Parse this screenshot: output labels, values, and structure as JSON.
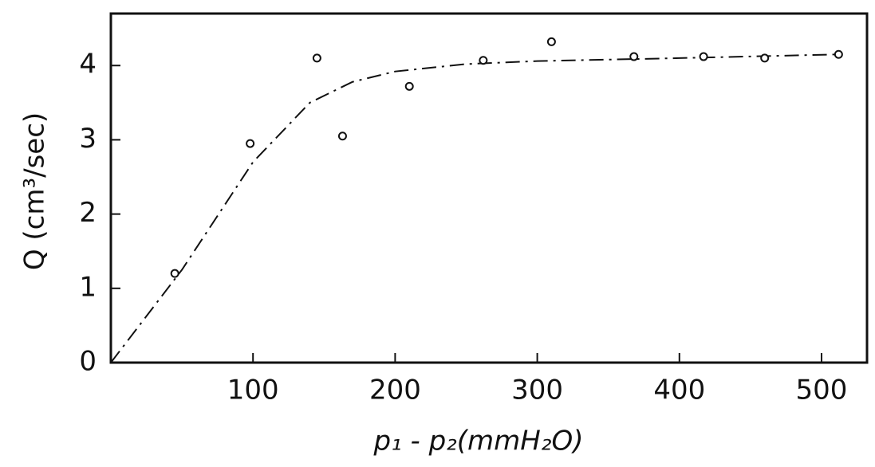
{
  "chart_data": {
    "type": "scatter",
    "xlabel": "p₁ - p₂(mmH₂O)",
    "ylabel": "Q (cm³/sec)",
    "xlim": [
      0,
      532
    ],
    "ylim": [
      0,
      4.7
    ],
    "xticks": [
      100,
      200,
      300,
      400,
      500
    ],
    "yticks": [
      0,
      1,
      2,
      3,
      4
    ],
    "points": {
      "x": [
        45,
        98,
        145,
        163,
        210,
        262,
        310,
        368,
        417,
        460,
        512
      ],
      "y": [
        1.2,
        2.95,
        4.1,
        3.05,
        3.72,
        4.07,
        4.32,
        4.12,
        4.12,
        4.1,
        4.15
      ]
    },
    "curve": {
      "x": [
        0,
        50,
        100,
        140,
        170,
        200,
        250,
        300,
        400,
        512
      ],
      "y": [
        0,
        1.25,
        2.7,
        3.5,
        3.78,
        3.92,
        4.02,
        4.06,
        4.1,
        4.15
      ]
    },
    "color": "#111"
  }
}
